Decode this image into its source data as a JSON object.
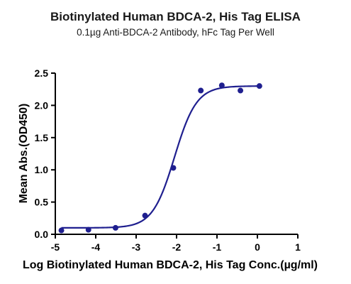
{
  "chart_data": {
    "type": "scatter",
    "title": "Biotinylated Human BDCA-2, His Tag ELISA",
    "subtitle": "0.1µg Anti-BDCA-2 Antibody, hFc Tag Per Well",
    "xlabel": "Log Biotinylated Human BDCA-2, His Tag Conc.(µg/ml)",
    "ylabel": "Mean Abs.(OD450)",
    "xlim": [
      -5,
      1
    ],
    "ylim": [
      0,
      2.5
    ],
    "xticks": [
      -5,
      -4,
      -3,
      -2,
      -1,
      0,
      1
    ],
    "yticks": [
      0.0,
      0.5,
      1.0,
      1.5,
      2.0,
      2.5
    ],
    "xtick_labels": [
      "-5",
      "-4",
      "-3",
      "-2",
      "-1",
      "0",
      "1"
    ],
    "ytick_labels": [
      "0.0",
      "0.5",
      "1.0",
      "1.5",
      "2.0",
      "2.5"
    ],
    "grid": false,
    "series": [
      {
        "points": [
          {
            "x": -4.85,
            "y": 0.06
          },
          {
            "x": -4.18,
            "y": 0.07
          },
          {
            "x": -3.51,
            "y": 0.1
          },
          {
            "x": -2.78,
            "y": 0.29
          },
          {
            "x": -2.08,
            "y": 1.03
          },
          {
            "x": -1.4,
            "y": 2.23
          },
          {
            "x": -0.88,
            "y": 2.31
          },
          {
            "x": -0.42,
            "y": 2.23
          },
          {
            "x": 0.05,
            "y": 2.3
          }
        ],
        "fit": {
          "bottom": 0.1,
          "top": 2.3,
          "log_ec50": -2.05,
          "hill": 1.6,
          "x_start": -4.85,
          "x_end": 0.05
        }
      }
    ],
    "color": "#1f1f8f"
  }
}
